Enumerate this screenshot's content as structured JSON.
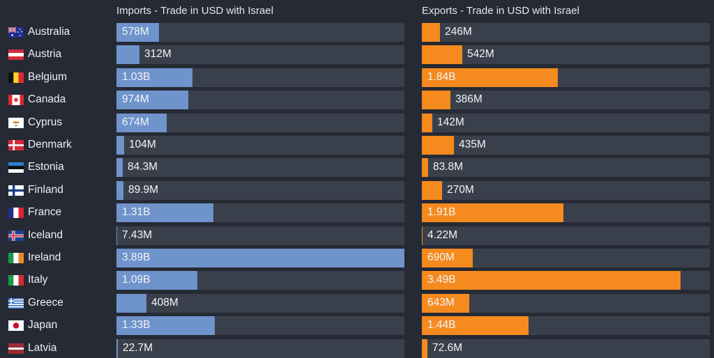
{
  "chart_data": [
    {
      "type": "bar",
      "orientation": "horizontal",
      "title": "Imports - Trade in USD with Israel",
      "categories": [
        "Australia",
        "Austria",
        "Belgium",
        "Canada",
        "Cyprus",
        "Denmark",
        "Estonia",
        "Finland",
        "France",
        "Iceland",
        "Ireland",
        "Italy",
        "Greece",
        "Japan",
        "Latvia"
      ],
      "values": [
        578000000,
        312000000,
        1030000000,
        974000000,
        674000000,
        104000000,
        84300000,
        89900000,
        1310000000,
        7430000,
        3890000000,
        1090000000,
        408000000,
        1330000000,
        22700000
      ],
      "labels": [
        "578M",
        "312M",
        "1.03B",
        "974M",
        "674M",
        "104M",
        "84.3M",
        "89.9M",
        "1.31B",
        "7.43M",
        "3.89B",
        "1.09B",
        "408M",
        "1.33B",
        "22.7M"
      ],
      "xlim": [
        0,
        3890000000
      ],
      "color": "#6f93cb",
      "grid": false
    },
    {
      "type": "bar",
      "orientation": "horizontal",
      "title": "Exports - Trade in USD with Israel",
      "categories": [
        "Australia",
        "Austria",
        "Belgium",
        "Canada",
        "Cyprus",
        "Denmark",
        "Estonia",
        "Finland",
        "France",
        "Iceland",
        "Ireland",
        "Italy",
        "Greece",
        "Japan",
        "Latvia"
      ],
      "values": [
        246000000,
        542000000,
        1840000000,
        386000000,
        142000000,
        435000000,
        83800000,
        270000000,
        1910000000,
        4220000,
        690000000,
        3490000000,
        643000000,
        1440000000,
        72600000
      ],
      "labels": [
        "246M",
        "542M",
        "1.84B",
        "386M",
        "142M",
        "435M",
        "83.8M",
        "270M",
        "1.91B",
        "4.22M",
        "690M",
        "3.49B",
        "643M",
        "1.44B",
        "72.6M"
      ],
      "xlim": [
        0,
        3890000000
      ],
      "color": "#f58a1f",
      "grid": false
    }
  ],
  "flags": [
    "australia-flag-icon",
    "austria-flag-icon",
    "belgium-flag-icon",
    "canada-flag-icon",
    "cyprus-flag-icon",
    "denmark-flag-icon",
    "estonia-flag-icon",
    "finland-flag-icon",
    "france-flag-icon",
    "iceland-flag-icon",
    "ireland-flag-icon",
    "italy-flag-icon",
    "greece-flag-icon",
    "japan-flag-icon",
    "latvia-flag-icon"
  ]
}
